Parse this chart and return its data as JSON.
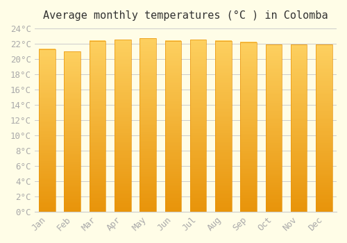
{
  "months": [
    "Jan",
    "Feb",
    "Mar",
    "Apr",
    "May",
    "Jun",
    "Jul",
    "Aug",
    "Sep",
    "Oct",
    "Nov",
    "Dec"
  ],
  "values": [
    21.3,
    21.0,
    22.4,
    22.5,
    22.7,
    22.4,
    22.5,
    22.4,
    22.2,
    21.9,
    21.9,
    21.9
  ],
  "title": "Average monthly temperatures (°C ) in Colomba",
  "ylim": [
    0,
    24
  ],
  "ytick_step": 2,
  "bar_color_top": "#FDB913",
  "bar_color_bottom": "#F9A800",
  "background_color": "#FFFDE7",
  "grid_color": "#CCCCCC",
  "title_fontsize": 11,
  "tick_fontsize": 9,
  "tick_color": "#AAAAAA"
}
